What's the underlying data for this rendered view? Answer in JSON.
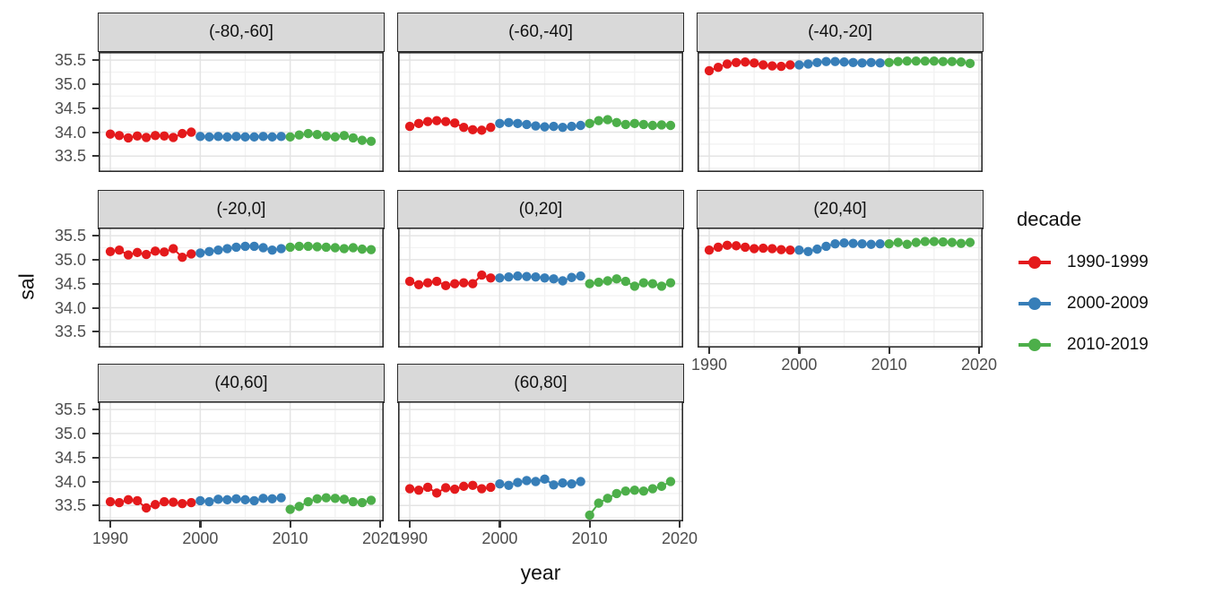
{
  "figure": {
    "y_axis_title": "sal",
    "x_axis_title": "year"
  },
  "legend": {
    "title": "decade",
    "entries": [
      {
        "label": "1990-1999",
        "color": "#E41A1C"
      },
      {
        "label": "2000-2009",
        "color": "#377EB8"
      },
      {
        "label": "2010-2019",
        "color": "#4DAF4A"
      }
    ]
  },
  "chart_data": {
    "type": "line",
    "xlabel": "year",
    "ylabel": "sal",
    "grid": "on",
    "legend_position": "right",
    "x_range": [
      1988.7,
      2020.4
    ],
    "y_range": [
      33.17,
      35.67
    ],
    "x_ticks": [
      {
        "v": 1990,
        "label": "1990"
      },
      {
        "v": 2000,
        "label": "2000"
      },
      {
        "v": 2010,
        "label": "2010"
      },
      {
        "v": 2020,
        "label": "2020"
      }
    ],
    "y_ticks": [
      {
        "v": 35.5,
        "label": "35.5"
      },
      {
        "v": 35.0,
        "label": "35.0"
      },
      {
        "v": 34.5,
        "label": "34.5"
      },
      {
        "v": 34.0,
        "label": "34.0"
      },
      {
        "v": 33.5,
        "label": "33.5"
      }
    ],
    "x_minor_ticks": [
      1995,
      2005,
      2015
    ],
    "y_minor_ticks": [
      33.25,
      33.75,
      34.25,
      34.75,
      35.25
    ],
    "colors": {
      "1990-1999": "#E41A1C",
      "2000-2009": "#377EB8",
      "2010-2019": "#4DAF4A"
    },
    "facets": [
      {
        "label": "(-80,-60]",
        "series": [
          {
            "name": "1990-1999",
            "start_year": 1990,
            "values": [
              33.96,
              33.93,
              33.88,
              33.92,
              33.89,
              33.93,
              33.92,
              33.89,
              33.97,
              34.0
            ]
          },
          {
            "name": "2000-2009",
            "start_year": 2000,
            "values": [
              33.91,
              33.9,
              33.91,
              33.9,
              33.91,
              33.9,
              33.9,
              33.91,
              33.9,
              33.91
            ]
          },
          {
            "name": "2010-2019",
            "start_year": 2010,
            "values": [
              33.9,
              33.94,
              33.97,
              33.95,
              33.92,
              33.9,
              33.93,
              33.88,
              33.83,
              33.81
            ]
          }
        ]
      },
      {
        "label": "(-60,-40]",
        "series": [
          {
            "name": "1990-1999",
            "start_year": 1990,
            "values": [
              34.12,
              34.18,
              34.22,
              34.24,
              34.22,
              34.19,
              34.1,
              34.05,
              34.04,
              34.1
            ]
          },
          {
            "name": "2000-2009",
            "start_year": 2000,
            "values": [
              34.18,
              34.2,
              34.18,
              34.16,
              34.13,
              34.11,
              34.12,
              34.1,
              34.12,
              34.14
            ]
          },
          {
            "name": "2010-2019",
            "start_year": 2010,
            "values": [
              34.18,
              34.24,
              34.26,
              34.2,
              34.16,
              34.18,
              34.16,
              34.14,
              34.15,
              34.14
            ]
          }
        ]
      },
      {
        "label": "(-40,-20]",
        "series": [
          {
            "name": "1990-1999",
            "start_year": 1990,
            "values": [
              35.28,
              35.35,
              35.42,
              35.45,
              35.46,
              35.44,
              35.4,
              35.38,
              35.37,
              35.4
            ]
          },
          {
            "name": "2000-2009",
            "start_year": 2000,
            "values": [
              35.4,
              35.42,
              35.45,
              35.47,
              35.47,
              35.46,
              35.45,
              35.44,
              35.45,
              35.44
            ]
          },
          {
            "name": "2010-2019",
            "start_year": 2010,
            "values": [
              35.45,
              35.47,
              35.48,
              35.48,
              35.48,
              35.48,
              35.47,
              35.47,
              35.46,
              35.43
            ]
          }
        ]
      },
      {
        "label": "(-20,0]",
        "series": [
          {
            "name": "1990-1999",
            "start_year": 1990,
            "values": [
              35.17,
              35.2,
              35.1,
              35.15,
              35.11,
              35.18,
              35.16,
              35.23,
              35.05,
              35.12
            ]
          },
          {
            "name": "2000-2009",
            "start_year": 2000,
            "values": [
              35.14,
              35.17,
              35.2,
              35.23,
              35.26,
              35.28,
              35.28,
              35.25,
              35.2,
              35.23
            ]
          },
          {
            "name": "2010-2019",
            "start_year": 2010,
            "values": [
              35.26,
              35.28,
              35.28,
              35.27,
              35.26,
              35.25,
              35.23,
              35.25,
              35.22,
              35.21
            ]
          }
        ]
      },
      {
        "label": "(0,20]",
        "series": [
          {
            "name": "1990-1999",
            "start_year": 1990,
            "values": [
              34.55,
              34.48,
              34.52,
              34.55,
              34.46,
              34.5,
              34.52,
              34.5,
              34.68,
              34.62
            ]
          },
          {
            "name": "2000-2009",
            "start_year": 2000,
            "values": [
              34.62,
              34.64,
              34.66,
              34.65,
              34.64,
              34.62,
              34.6,
              34.56,
              34.63,
              34.66
            ]
          },
          {
            "name": "2010-2019",
            "start_year": 2010,
            "values": [
              34.5,
              34.53,
              34.56,
              34.6,
              34.55,
              34.45,
              34.52,
              34.5,
              34.45,
              34.52
            ]
          }
        ]
      },
      {
        "label": "(20,40]",
        "series": [
          {
            "name": "1990-1999",
            "start_year": 1990,
            "values": [
              35.2,
              35.26,
              35.3,
              35.29,
              35.26,
              35.23,
              35.24,
              35.23,
              35.21,
              35.2
            ]
          },
          {
            "name": "2000-2009",
            "start_year": 2000,
            "values": [
              35.2,
              35.17,
              35.22,
              35.28,
              35.33,
              35.35,
              35.34,
              35.33,
              35.32,
              35.33
            ]
          },
          {
            "name": "2010-2019",
            "start_year": 2010,
            "values": [
              35.33,
              35.36,
              35.32,
              35.36,
              35.38,
              35.38,
              35.37,
              35.36,
              35.34,
              35.36
            ]
          }
        ]
      },
      {
        "label": "(40,60]",
        "series": [
          {
            "name": "1990-1999",
            "start_year": 1990,
            "values": [
              33.58,
              33.56,
              33.62,
              33.6,
              33.45,
              33.52,
              33.58,
              33.57,
              33.54,
              33.56
            ]
          },
          {
            "name": "2000-2009",
            "start_year": 2000,
            "values": [
              33.6,
              33.58,
              33.63,
              33.62,
              33.64,
              33.62,
              33.6,
              33.65,
              33.64,
              33.66
            ]
          },
          {
            "name": "2010-2019",
            "start_year": 2010,
            "values": [
              33.42,
              33.48,
              33.58,
              33.64,
              33.66,
              33.65,
              33.63,
              33.58,
              33.56,
              33.61
            ]
          }
        ]
      },
      {
        "label": "(60,80]",
        "series": [
          {
            "name": "1990-1999",
            "start_year": 1990,
            "values": [
              33.85,
              33.82,
              33.88,
              33.76,
              33.87,
              33.84,
              33.9,
              33.92,
              33.85,
              33.88
            ]
          },
          {
            "name": "2000-2009",
            "start_year": 2000,
            "values": [
              33.95,
              33.92,
              33.98,
              34.02,
              34.0,
              34.05,
              33.93,
              33.97,
              33.95,
              34.0
            ]
          },
          {
            "name": "2010-2019",
            "start_year": 2010,
            "values": [
              33.3,
              33.55,
              33.65,
              33.75,
              33.8,
              33.82,
              33.8,
              33.85,
              33.9,
              34.0
            ]
          }
        ]
      }
    ]
  }
}
